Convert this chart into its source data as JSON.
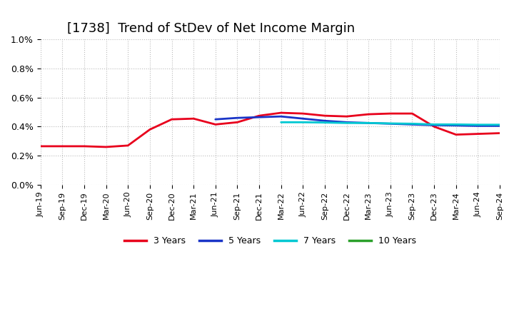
{
  "title": "[1738]  Trend of StDev of Net Income Margin",
  "title_fontsize": 13,
  "ylim": [
    0.0,
    0.01
  ],
  "ytick_labels": [
    "0.0%",
    "0.2%",
    "0.4%",
    "0.6%",
    "0.8%",
    "1.0%"
  ],
  "ytick_values": [
    0.0,
    0.002,
    0.004,
    0.006,
    0.008,
    0.01
  ],
  "background_color": "#ffffff",
  "grid_color": "#aaaaaa",
  "x_ticks": [
    "Jun-19",
    "Sep-19",
    "Dec-19",
    "Mar-20",
    "Jun-20",
    "Sep-20",
    "Dec-20",
    "Mar-21",
    "Jun-21",
    "Sep-21",
    "Dec-21",
    "Mar-22",
    "Jun-22",
    "Sep-22",
    "Dec-22",
    "Mar-23",
    "Jun-23",
    "Sep-23",
    "Dec-23",
    "Mar-24",
    "Jun-24",
    "Sep-24"
  ],
  "series": {
    "3 Years": {
      "color": "#e8001c",
      "linewidth": 2.0,
      "x_indices": [
        0,
        1,
        2,
        3,
        4,
        5,
        6,
        7,
        8,
        9,
        10,
        11,
        12,
        13,
        14,
        15,
        16,
        17,
        18,
        19,
        20,
        21
      ],
      "values": [
        0.00265,
        0.00265,
        0.00265,
        0.0026,
        0.0027,
        0.0038,
        0.0045,
        0.00455,
        0.00415,
        0.0043,
        0.00475,
        0.00495,
        0.0049,
        0.00475,
        0.0047,
        0.00485,
        0.0049,
        0.0049,
        0.004,
        0.00345,
        0.0035,
        0.00355
      ]
    },
    "5 Years": {
      "color": "#1a35c7",
      "linewidth": 2.0,
      "x_indices": [
        8,
        9,
        10,
        11,
        12,
        13,
        14,
        15,
        16,
        17,
        18,
        19,
        20,
        21
      ],
      "values": [
        0.0045,
        0.0046,
        0.00465,
        0.0047,
        0.00455,
        0.0044,
        0.0043,
        0.00425,
        0.0042,
        0.00415,
        0.0041,
        0.00408,
        0.00405,
        0.00405
      ]
    },
    "7 Years": {
      "color": "#00c8d2",
      "linewidth": 2.0,
      "x_indices": [
        11,
        12,
        13,
        14,
        15,
        16,
        17,
        18,
        19,
        20,
        21
      ],
      "values": [
        0.0043,
        0.0043,
        0.00428,
        0.00425,
        0.00425,
        0.00422,
        0.0042,
        0.00415,
        0.00415,
        0.00413,
        0.00413
      ]
    },
    "10 Years": {
      "color": "#2ca02c",
      "linewidth": 2.0,
      "x_indices": [],
      "values": []
    }
  },
  "legend_labels": [
    "3 Years",
    "5 Years",
    "7 Years",
    "10 Years"
  ],
  "legend_colors": [
    "#e8001c",
    "#1a35c7",
    "#00c8d2",
    "#2ca02c"
  ]
}
